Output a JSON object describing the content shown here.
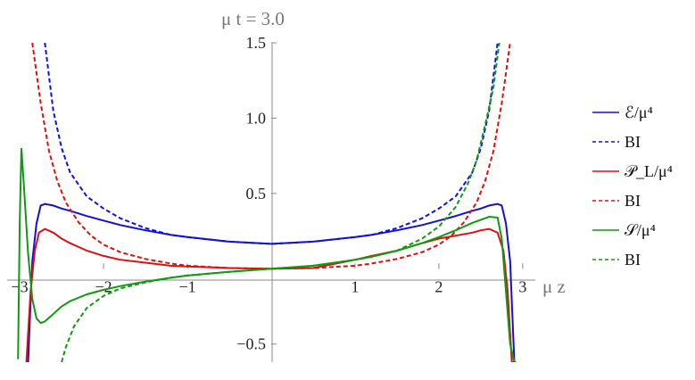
{
  "chart_data": {
    "type": "line",
    "title": "μ t = 3.0",
    "xlabel": "μ z",
    "ylabel": "",
    "xlim": [
      -3.15,
      3.15
    ],
    "ylim": [
      -0.62,
      1.5
    ],
    "xticks": [
      -3,
      -2,
      -1,
      1,
      2,
      3
    ],
    "xtick_labels": [
      "−3",
      "−2",
      "−1",
      "1",
      "2",
      "3"
    ],
    "yticks": [
      -0.5,
      0.5,
      1.0,
      1.5
    ],
    "ytick_labels": [
      "−0.5",
      "0.5",
      "1.0",
      "1.5"
    ],
    "legend_position": "right",
    "series": [
      {
        "name": "ℰ/μ⁴",
        "color": "#1010dd",
        "dash": "solid",
        "x": [
          -2.9,
          -2.85,
          -2.8,
          -2.75,
          -2.7,
          -2.6,
          -2.5,
          -2.4,
          -2.2,
          -2.0,
          -1.8,
          -1.5,
          -1.2,
          -1.0,
          -0.5,
          0.0,
          0.5,
          1.0,
          1.2,
          1.5,
          1.8,
          2.0,
          2.2,
          2.4,
          2.5,
          2.6,
          2.7,
          2.75,
          2.8,
          2.85,
          2.9
        ],
        "y": [
          -0.62,
          0.05,
          0.3,
          0.42,
          0.43,
          0.42,
          0.4,
          0.385,
          0.35,
          0.32,
          0.29,
          0.255,
          0.225,
          0.21,
          0.18,
          0.165,
          0.18,
          0.21,
          0.225,
          0.255,
          0.29,
          0.32,
          0.35,
          0.385,
          0.4,
          0.42,
          0.43,
          0.42,
          0.3,
          0.05,
          -0.62
        ]
      },
      {
        "name": "BI",
        "color": "#1010dd",
        "dash": "dashed",
        "x": [
          -2.7,
          -2.6,
          -2.5,
          -2.4,
          -2.2,
          -2.0,
          -1.8,
          -1.5,
          -1.2,
          -1.0,
          -0.5,
          0.0,
          0.5,
          1.0,
          1.2,
          1.5,
          1.8,
          2.0,
          2.2,
          2.4,
          2.5,
          2.6,
          2.7
        ],
        "y": [
          1.5,
          1.05,
          0.8,
          0.64,
          0.48,
          0.4,
          0.335,
          0.27,
          0.225,
          0.21,
          0.18,
          0.165,
          0.18,
          0.21,
          0.225,
          0.27,
          0.335,
          0.4,
          0.48,
          0.64,
          0.8,
          1.05,
          1.5
        ]
      },
      {
        "name": "𝒫_L/μ⁴",
        "color": "#dd1010",
        "dash": "solid",
        "x": [
          -2.92,
          -2.87,
          -2.82,
          -2.77,
          -2.7,
          -2.6,
          -2.5,
          -2.4,
          -2.2,
          -2.0,
          -1.8,
          -1.5,
          -1.2,
          -1.0,
          -0.5,
          0.0,
          0.5,
          1.0,
          1.2,
          1.5,
          1.8,
          2.0,
          2.2,
          2.4,
          2.5,
          2.6,
          2.7,
          2.77,
          2.82,
          2.87,
          2.92
        ],
        "y": [
          -0.62,
          -0.15,
          0.12,
          0.24,
          0.265,
          0.24,
          0.2,
          0.17,
          0.12,
          0.085,
          0.06,
          0.04,
          0.02,
          0.015,
          0.005,
          0.0,
          0.005,
          0.06,
          0.085,
          0.12,
          0.17,
          0.2,
          0.22,
          0.24,
          0.255,
          0.265,
          0.24,
          0.12,
          -0.15,
          -0.62,
          -0.62
        ]
      },
      {
        "name": "BI",
        "color": "#dd1010",
        "dash": "dashed",
        "x": [
          -2.85,
          -2.75,
          -2.65,
          -2.55,
          -2.45,
          -2.3,
          -2.15,
          -2.0,
          -1.8,
          -1.5,
          -1.2,
          -1.0,
          -0.5,
          0.0,
          0.5,
          1.0,
          1.2,
          1.5,
          1.8,
          2.0,
          2.15,
          2.3,
          2.45,
          2.55,
          2.65,
          2.75,
          2.85
        ],
        "y": [
          1.5,
          1.1,
          0.78,
          0.58,
          0.44,
          0.31,
          0.22,
          0.16,
          0.11,
          0.065,
          0.035,
          0.02,
          0.005,
          0.0,
          0.005,
          0.02,
          0.035,
          0.065,
          0.11,
          0.16,
          0.22,
          0.31,
          0.44,
          0.58,
          0.78,
          1.1,
          1.5
        ]
      },
      {
        "name": "𝒮/μ⁴",
        "color": "#109a10",
        "dash": "solid",
        "x": [
          -3.02,
          -3.0,
          -2.98,
          -2.95,
          -2.9,
          -2.85,
          -2.8,
          -2.75,
          -2.7,
          -2.6,
          -2.5,
          -2.4,
          -2.2,
          -2.0,
          -1.8,
          -1.5,
          -1.2,
          -1.0,
          -0.5,
          0.0,
          0.5,
          1.0,
          1.2,
          1.5,
          1.8,
          2.0,
          2.2,
          2.4,
          2.5,
          2.6,
          2.7,
          2.75,
          2.8,
          2.85,
          2.9
        ],
        "y": [
          -0.6,
          0.3,
          0.8,
          0.55,
          0.1,
          -0.2,
          -0.33,
          -0.36,
          -0.35,
          -0.3,
          -0.25,
          -0.215,
          -0.17,
          -0.14,
          -0.115,
          -0.085,
          -0.06,
          -0.045,
          -0.02,
          0.0,
          0.02,
          0.06,
          0.08,
          0.12,
          0.17,
          0.21,
          0.255,
          0.305,
          0.325,
          0.345,
          0.34,
          0.2,
          -0.15,
          -0.5,
          -0.62
        ]
      },
      {
        "name": "BI",
        "color": "#109a10",
        "dash": "dashed",
        "x": [
          -2.5,
          -2.45,
          -2.35,
          -2.2,
          -2.0,
          -1.8,
          -1.5,
          -1.2,
          -1.0,
          -0.5,
          0.0,
          0.5,
          1.0,
          1.2,
          1.5,
          1.8,
          2.0,
          2.2,
          2.35,
          2.45,
          2.55,
          2.65,
          2.72
        ],
        "y": [
          -0.62,
          -0.52,
          -0.38,
          -0.26,
          -0.18,
          -0.13,
          -0.09,
          -0.06,
          -0.045,
          -0.02,
          0.0,
          0.02,
          0.06,
          0.08,
          0.12,
          0.2,
          0.28,
          0.41,
          0.57,
          0.72,
          0.95,
          1.2,
          1.5
        ]
      }
    ]
  }
}
